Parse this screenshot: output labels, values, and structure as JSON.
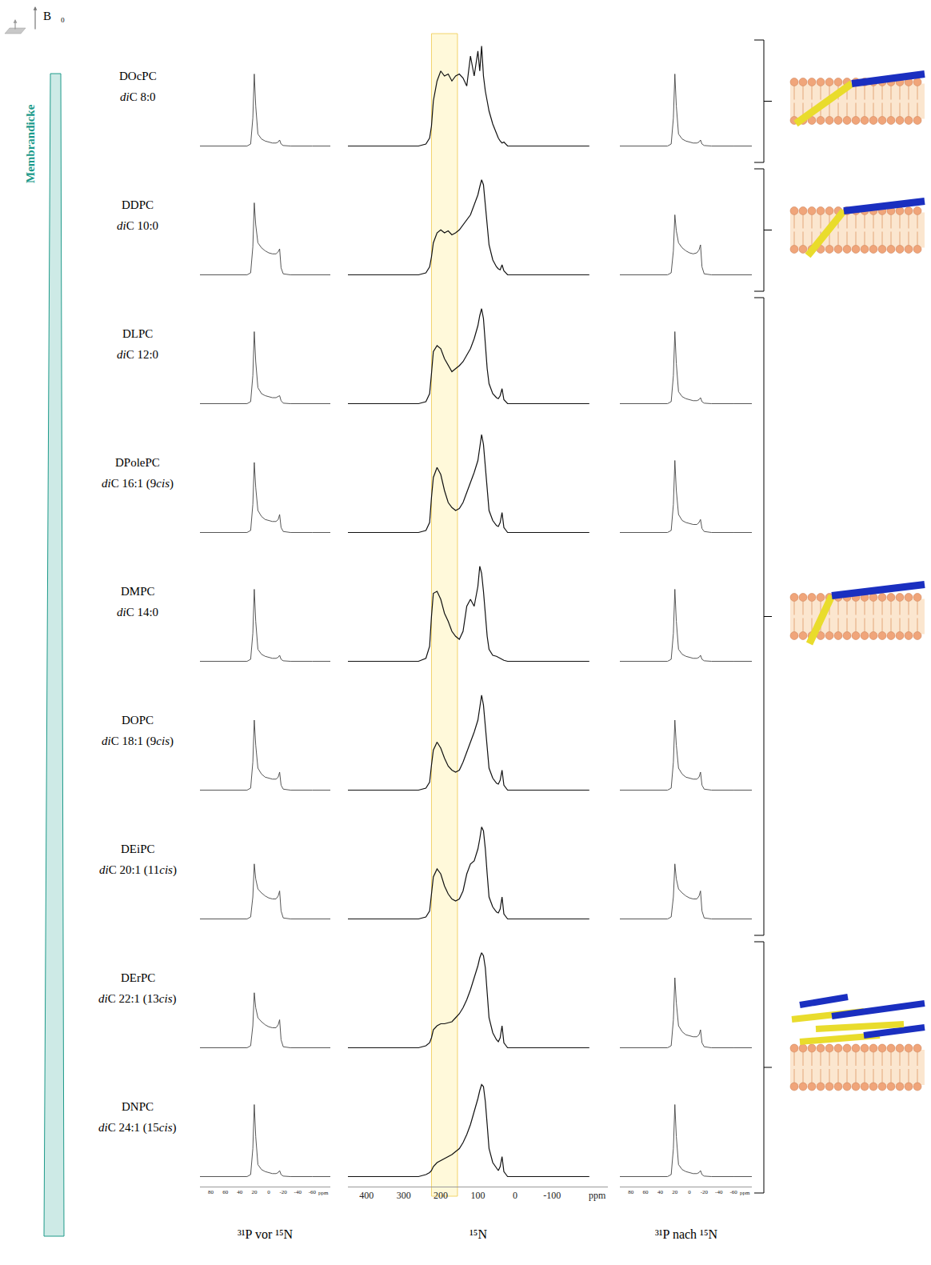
{
  "field_label": "B⃗₀",
  "side_label": "Membrandicke",
  "rows": [
    {
      "name": "DOcPC",
      "chain": "diC 8:0"
    },
    {
      "name": "DDPC",
      "chain": "diC 10:0"
    },
    {
      "name": "DLPC",
      "chain": "diC 12:0"
    },
    {
      "name": "DPolePC",
      "chain": "diC 16:1 (9cis)"
    },
    {
      "name": "DMPC",
      "chain": "diC 14:0"
    },
    {
      "name": "DOPC",
      "chain": "diC 18:1 (9cis)"
    },
    {
      "name": "DEiPC",
      "chain": "diC 20:1 (11cis)"
    },
    {
      "name": "DErPC",
      "chain": "diC 22:1 (13cis)"
    },
    {
      "name": "DNPC",
      "chain": "diC 24:1 (15cis)"
    }
  ],
  "groups": [
    [
      0,
      0
    ],
    [
      1,
      1
    ],
    [
      2,
      6
    ],
    [
      7,
      8
    ]
  ],
  "chart_data": [
    {
      "type": "line",
      "xlabel": "³¹P vor ¹⁵N",
      "unit": "ppm",
      "tick_labels": "x",
      "xlim": [
        95,
        -85
      ],
      "xticks": [
        80,
        60,
        40,
        20,
        0,
        -20,
        -40,
        -60
      ],
      "ylim": [
        -10,
        110
      ],
      "x": [
        95,
        60,
        40,
        30,
        25,
        22,
        20,
        18,
        15,
        10,
        5,
        0,
        -5,
        -10,
        -13,
        -15,
        -17,
        -20,
        -30,
        -60,
        -85
      ],
      "series": [
        {
          "values": [
            0,
            0,
            0,
            0,
            2,
            28,
            72,
            40,
            12,
            7,
            5,
            4,
            3,
            3,
            4,
            6,
            2,
            0.5,
            0,
            0,
            0
          ]
        },
        {
          "values": [
            0,
            0,
            0,
            0,
            2,
            28,
            72,
            50,
            32,
            27,
            24,
            22,
            21,
            21,
            23,
            26,
            7,
            1,
            0,
            0,
            0
          ]
        },
        {
          "values": [
            0,
            0,
            0,
            0,
            2,
            28,
            72,
            42,
            16,
            10,
            8,
            7,
            6,
            6,
            7,
            8,
            3,
            0.5,
            0,
            0,
            0
          ]
        },
        {
          "values": [
            0,
            0,
            0,
            0,
            2,
            28,
            70,
            45,
            22,
            16,
            13,
            12,
            11,
            11,
            13,
            18,
            5,
            1,
            0,
            0,
            0
          ]
        },
        {
          "values": [
            0,
            0,
            0,
            0,
            2,
            28,
            72,
            40,
            12,
            7,
            5,
            4,
            3,
            3,
            4,
            6,
            2,
            0.5,
            0,
            0,
            0
          ]
        },
        {
          "values": [
            0,
            0,
            0,
            0,
            2,
            28,
            70,
            45,
            22,
            16,
            13,
            12,
            11,
            11,
            13,
            18,
            5,
            1,
            0,
            0,
            0
          ]
        },
        {
          "values": [
            0,
            0,
            0,
            0,
            2,
            22,
            55,
            40,
            30,
            26,
            23,
            21,
            20,
            20,
            23,
            28,
            8,
            1,
            0,
            0,
            0
          ]
        },
        {
          "values": [
            0,
            0,
            0,
            0,
            2,
            22,
            55,
            40,
            30,
            26,
            23,
            21,
            20,
            20,
            23,
            28,
            8,
            1,
            0,
            0,
            0
          ]
        },
        {
          "values": [
            0,
            0,
            0,
            0,
            2,
            28,
            72,
            40,
            12,
            7,
            5,
            4,
            3,
            3,
            4,
            6,
            2,
            0.5,
            0,
            0,
            0
          ]
        }
      ]
    },
    {
      "type": "line",
      "xlabel": "¹⁵N",
      "unit": "ppm",
      "tick_labels": "x",
      "xlim": [
        450,
        -250
      ],
      "xticks": [
        400,
        300,
        200,
        100,
        0,
        -100
      ],
      "ylim": [
        -10,
        110
      ],
      "band": [
        155,
        225
      ],
      "x": [
        450,
        350,
        300,
        260,
        240,
        230,
        225,
        220,
        210,
        200,
        190,
        180,
        170,
        160,
        150,
        140,
        130,
        120,
        110,
        100,
        95,
        90,
        85,
        80,
        75,
        70,
        60,
        50,
        45,
        40,
        35,
        30,
        20,
        0,
        -50,
        -100,
        -200
      ],
      "series": [
        {
          "values": [
            0,
            0,
            0,
            0,
            2,
            8,
            20,
            45,
            65,
            75,
            70,
            72,
            65,
            70,
            72,
            68,
            60,
            90,
            70,
            95,
            75,
            100,
            70,
            55,
            45,
            35,
            22,
            12,
            8,
            5,
            3,
            4,
            0,
            0,
            0,
            0,
            0
          ]
        },
        {
          "values": [
            0,
            0,
            0,
            0,
            2,
            8,
            18,
            32,
            42,
            45,
            42,
            44,
            40,
            42,
            45,
            50,
            55,
            60,
            70,
            80,
            88,
            95,
            90,
            70,
            50,
            30,
            15,
            8,
            6,
            5,
            10,
            4,
            0,
            0,
            0,
            0,
            0
          ]
        },
        {
          "values": [
            0,
            0,
            0,
            0,
            2,
            10,
            30,
            52,
            58,
            55,
            45,
            38,
            32,
            35,
            38,
            42,
            48,
            55,
            65,
            78,
            88,
            95,
            85,
            60,
            35,
            20,
            10,
            6,
            5,
            8,
            15,
            4,
            0,
            0,
            0,
            0,
            0
          ]
        },
        {
          "values": [
            0,
            0,
            0,
            0,
            2,
            10,
            35,
            55,
            65,
            58,
            42,
            30,
            25,
            22,
            24,
            30,
            40,
            50,
            60,
            72,
            85,
            98,
            88,
            65,
            40,
            22,
            12,
            7,
            6,
            10,
            20,
            5,
            0,
            0,
            0,
            0,
            0
          ]
        },
        {
          "values": [
            0,
            0,
            0,
            0,
            3,
            15,
            45,
            68,
            70,
            62,
            48,
            40,
            30,
            25,
            22,
            30,
            55,
            62,
            55,
            75,
            95,
            88,
            70,
            45,
            25,
            12,
            6,
            5,
            4,
            3,
            2,
            1,
            0,
            0,
            0,
            0,
            0
          ]
        },
        {
          "values": [
            0,
            0,
            0,
            0,
            2,
            8,
            25,
            40,
            48,
            42,
            32,
            24,
            20,
            18,
            20,
            28,
            38,
            48,
            58,
            70,
            82,
            95,
            85,
            62,
            40,
            22,
            12,
            7,
            6,
            10,
            20,
            5,
            0,
            0,
            0,
            0,
            0
          ]
        },
        {
          "values": [
            0,
            0,
            0,
            0,
            2,
            8,
            25,
            42,
            50,
            45,
            33,
            25,
            20,
            18,
            20,
            28,
            45,
            55,
            58,
            70,
            80,
            92,
            88,
            70,
            45,
            22,
            12,
            7,
            6,
            10,
            22,
            5,
            0,
            0,
            0,
            0,
            0
          ]
        },
        {
          "values": [
            0,
            0,
            0,
            0,
            2,
            5,
            10,
            18,
            22,
            24,
            24,
            25,
            26,
            30,
            34,
            40,
            48,
            58,
            70,
            82,
            90,
            95,
            92,
            80,
            55,
            30,
            15,
            8,
            6,
            10,
            22,
            5,
            0,
            0,
            0,
            0,
            0
          ]
        },
        {
          "values": [
            0,
            0,
            0,
            0,
            2,
            4,
            6,
            10,
            14,
            16,
            18,
            20,
            22,
            25,
            28,
            34,
            42,
            52,
            64,
            78,
            86,
            92,
            90,
            75,
            52,
            28,
            14,
            8,
            6,
            10,
            20,
            5,
            0,
            0,
            0,
            0,
            0
          ]
        }
      ]
    },
    {
      "type": "line",
      "xlabel": "³¹P nach ¹⁵N",
      "unit": "ppm",
      "tick_labels": "x",
      "xlim": [
        95,
        -85
      ],
      "xticks": [
        80,
        60,
        40,
        20,
        0,
        -20,
        -40,
        -60
      ],
      "ylim": [
        -10,
        110
      ],
      "x": [
        95,
        60,
        40,
        30,
        25,
        22,
        20,
        18,
        15,
        10,
        5,
        0,
        -5,
        -10,
        -13,
        -15,
        -17,
        -20,
        -30,
        -60,
        -85
      ],
      "series": [
        {
          "values": [
            0,
            0,
            0,
            0,
            2,
            28,
            72,
            40,
            12,
            7,
            5,
            4,
            3,
            3,
            4,
            6,
            2,
            0.5,
            0,
            0,
            0
          ]
        },
        {
          "values": [
            0,
            0,
            0,
            0,
            2,
            24,
            60,
            44,
            32,
            27,
            24,
            22,
            21,
            22,
            25,
            30,
            8,
            1,
            0,
            0,
            0
          ]
        },
        {
          "values": [
            0,
            0,
            0,
            0,
            2,
            28,
            72,
            40,
            12,
            7,
            5,
            4,
            3,
            3,
            4,
            6,
            2,
            0.5,
            0,
            0,
            0
          ]
        },
        {
          "values": [
            0,
            0,
            0,
            0,
            2,
            28,
            72,
            42,
            18,
            12,
            10,
            9,
            8,
            8,
            10,
            13,
            4,
            1,
            0,
            0,
            0
          ]
        },
        {
          "values": [
            0,
            0,
            0,
            0,
            2,
            28,
            72,
            40,
            12,
            7,
            5,
            4,
            3,
            3,
            4,
            6,
            2,
            0.5,
            0,
            0,
            0
          ]
        },
        {
          "values": [
            0,
            0,
            0,
            0,
            2,
            28,
            70,
            45,
            22,
            16,
            13,
            12,
            11,
            11,
            13,
            18,
            5,
            1,
            0,
            0,
            0
          ]
        },
        {
          "values": [
            0,
            0,
            0,
            0,
            2,
            22,
            55,
            40,
            30,
            26,
            23,
            21,
            20,
            20,
            23,
            28,
            8,
            1,
            0,
            0,
            0
          ]
        },
        {
          "values": [
            0,
            0,
            0,
            0,
            2,
            28,
            70,
            45,
            22,
            16,
            13,
            12,
            11,
            11,
            13,
            18,
            5,
            1,
            0,
            0,
            0
          ]
        },
        {
          "values": [
            0,
            0,
            0,
            0,
            2,
            28,
            72,
            40,
            12,
            7,
            5,
            4,
            3,
            3,
            4,
            6,
            2,
            0.5,
            0,
            0,
            0
          ]
        }
      ]
    }
  ]
}
